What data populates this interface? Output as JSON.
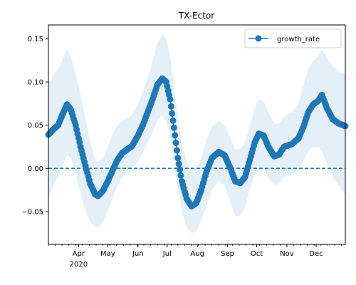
{
  "chart_data": {
    "type": "line",
    "title": "TX-Ector",
    "xlabel": "",
    "ylabel": "",
    "x_range": [
      "2020-03-01",
      "2020-12-31"
    ],
    "ylim": [
      -0.088,
      0.166
    ],
    "yticks": [
      -0.05,
      0.0,
      0.05,
      0.1,
      0.15
    ],
    "ytick_labels": [
      "−0.05",
      "0.00",
      "0.05",
      "0.10",
      "0.15"
    ],
    "xticks": [
      {
        "date": "2020-04-01",
        "label": "Apr",
        "sublabel": "2020"
      },
      {
        "date": "2020-05-01",
        "label": "May",
        "sublabel": ""
      },
      {
        "date": "2020-06-01",
        "label": "Jun",
        "sublabel": ""
      },
      {
        "date": "2020-07-01",
        "label": "Jul",
        "sublabel": ""
      },
      {
        "date": "2020-08-01",
        "label": "Aug",
        "sublabel": ""
      },
      {
        "date": "2020-09-01",
        "label": "Sep",
        "sublabel": ""
      },
      {
        "date": "2020-10-01",
        "label": "Oct",
        "sublabel": ""
      },
      {
        "date": "2020-11-01",
        "label": "Nov",
        "sublabel": ""
      },
      {
        "date": "2020-12-01",
        "label": "Dec",
        "sublabel": ""
      }
    ],
    "reference_line": {
      "y": 0,
      "style": "dashed"
    },
    "legend": {
      "placement": "top-right",
      "entries": [
        "growth_rate"
      ]
    },
    "grid": false,
    "colors": {
      "line": "#1f77b4",
      "band": "#dce9f5",
      "ref": "#1f77b4"
    },
    "series": [
      {
        "name": "growth_rate",
        "points": [
          {
            "x": "2020-03-01",
            "y": 0.039,
            "lo": -0.035,
            "hi": 0.097
          },
          {
            "x": "2020-03-06",
            "y": 0.045,
            "lo": -0.02,
            "hi": 0.108
          },
          {
            "x": "2020-03-11",
            "y": 0.05,
            "lo": -0.01,
            "hi": 0.115
          },
          {
            "x": "2020-03-15",
            "y": 0.061,
            "lo": 0.0,
            "hi": 0.125
          },
          {
            "x": "2020-03-20",
            "y": 0.074,
            "lo": 0.015,
            "hi": 0.138
          },
          {
            "x": "2020-03-24",
            "y": 0.068,
            "lo": 0.012,
            "hi": 0.13
          },
          {
            "x": "2020-03-29",
            "y": 0.05,
            "lo": -0.005,
            "hi": 0.11
          },
          {
            "x": "2020-04-03",
            "y": 0.025,
            "lo": -0.03,
            "hi": 0.085
          },
          {
            "x": "2020-04-08",
            "y": 0.003,
            "lo": -0.05,
            "hi": 0.058
          },
          {
            "x": "2020-04-13",
            "y": -0.018,
            "lo": -0.062,
            "hi": 0.03
          },
          {
            "x": "2020-04-18",
            "y": -0.03,
            "lo": -0.068,
            "hi": 0.01
          },
          {
            "x": "2020-04-21",
            "y": -0.032,
            "lo": -0.068,
            "hi": 0.008
          },
          {
            "x": "2020-04-26",
            "y": -0.026,
            "lo": -0.062,
            "hi": 0.012
          },
          {
            "x": "2020-05-01",
            "y": -0.015,
            "lo": -0.05,
            "hi": 0.025
          },
          {
            "x": "2020-05-06",
            "y": -0.002,
            "lo": -0.035,
            "hi": 0.04
          },
          {
            "x": "2020-05-11",
            "y": 0.01,
            "lo": -0.02,
            "hi": 0.05
          },
          {
            "x": "2020-05-16",
            "y": 0.018,
            "lo": -0.01,
            "hi": 0.055
          },
          {
            "x": "2020-05-21",
            "y": 0.022,
            "lo": -0.005,
            "hi": 0.058
          },
          {
            "x": "2020-05-26",
            "y": 0.026,
            "lo": 0.0,
            "hi": 0.062
          },
          {
            "x": "2020-06-01",
            "y": 0.038,
            "lo": 0.008,
            "hi": 0.075
          },
          {
            "x": "2020-06-06",
            "y": 0.05,
            "lo": 0.018,
            "hi": 0.088
          },
          {
            "x": "2020-06-11",
            "y": 0.065,
            "lo": 0.03,
            "hi": 0.105
          },
          {
            "x": "2020-06-16",
            "y": 0.08,
            "lo": 0.042,
            "hi": 0.125
          },
          {
            "x": "2020-06-21",
            "y": 0.097,
            "lo": 0.055,
            "hi": 0.145
          },
          {
            "x": "2020-06-26",
            "y": 0.104,
            "lo": 0.062,
            "hi": 0.155
          },
          {
            "x": "2020-06-30",
            "y": 0.1,
            "lo": 0.055,
            "hi": 0.15
          },
          {
            "x": "2020-07-04",
            "y": 0.08,
            "lo": 0.035,
            "hi": 0.13
          },
          {
            "x": "2020-07-08",
            "y": 0.047,
            "lo": 0.005,
            "hi": 0.095
          },
          {
            "x": "2020-07-12",
            "y": 0.012,
            "lo": -0.025,
            "hi": 0.06
          },
          {
            "x": "2020-07-16",
            "y": -0.015,
            "lo": -0.05,
            "hi": 0.03
          },
          {
            "x": "2020-07-21",
            "y": -0.035,
            "lo": -0.068,
            "hi": 0.008
          },
          {
            "x": "2020-07-26",
            "y": -0.044,
            "lo": -0.075,
            "hi": -0.005
          },
          {
            "x": "2020-07-31",
            "y": -0.04,
            "lo": -0.073,
            "hi": 0.0
          },
          {
            "x": "2020-08-05",
            "y": -0.025,
            "lo": -0.06,
            "hi": 0.012
          },
          {
            "x": "2020-08-10",
            "y": -0.005,
            "lo": -0.045,
            "hi": 0.032
          },
          {
            "x": "2020-08-16",
            "y": 0.012,
            "lo": -0.025,
            "hi": 0.048
          },
          {
            "x": "2020-08-23",
            "y": 0.019,
            "lo": -0.015,
            "hi": 0.055
          },
          {
            "x": "2020-08-29",
            "y": 0.015,
            "lo": -0.02,
            "hi": 0.05
          },
          {
            "x": "2020-09-04",
            "y": 0.0,
            "lo": -0.04,
            "hi": 0.035
          },
          {
            "x": "2020-09-09",
            "y": -0.015,
            "lo": -0.055,
            "hi": 0.022
          },
          {
            "x": "2020-09-14",
            "y": -0.017,
            "lo": -0.055,
            "hi": 0.022
          },
          {
            "x": "2020-09-19",
            "y": -0.01,
            "lo": -0.045,
            "hi": 0.03
          },
          {
            "x": "2020-09-24",
            "y": 0.01,
            "lo": -0.025,
            "hi": 0.05
          },
          {
            "x": "2020-09-29",
            "y": 0.03,
            "lo": -0.008,
            "hi": 0.07
          },
          {
            "x": "2020-10-03",
            "y": 0.04,
            "lo": 0.0,
            "hi": 0.08
          },
          {
            "x": "2020-10-08",
            "y": 0.038,
            "lo": 0.0,
            "hi": 0.078
          },
          {
            "x": "2020-10-13",
            "y": 0.025,
            "lo": -0.012,
            "hi": 0.065
          },
          {
            "x": "2020-10-19",
            "y": 0.014,
            "lo": -0.02,
            "hi": 0.052
          },
          {
            "x": "2020-10-24",
            "y": 0.016,
            "lo": -0.018,
            "hi": 0.052
          },
          {
            "x": "2020-10-29",
            "y": 0.025,
            "lo": -0.01,
            "hi": 0.06
          },
          {
            "x": "2020-11-06",
            "y": 0.028,
            "lo": -0.008,
            "hi": 0.065
          },
          {
            "x": "2020-11-13",
            "y": 0.035,
            "lo": 0.0,
            "hi": 0.075
          },
          {
            "x": "2020-11-18",
            "y": 0.048,
            "lo": 0.008,
            "hi": 0.095
          },
          {
            "x": "2020-11-23",
            "y": 0.065,
            "lo": 0.02,
            "hi": 0.115
          },
          {
            "x": "2020-11-28",
            "y": 0.074,
            "lo": 0.025,
            "hi": 0.125
          },
          {
            "x": "2020-12-03",
            "y": 0.078,
            "lo": 0.025,
            "hi": 0.13
          },
          {
            "x": "2020-12-07",
            "y": 0.085,
            "lo": 0.02,
            "hi": 0.138
          },
          {
            "x": "2020-12-12",
            "y": 0.07,
            "lo": 0.005,
            "hi": 0.128
          },
          {
            "x": "2020-12-18",
            "y": 0.057,
            "lo": -0.01,
            "hi": 0.118
          },
          {
            "x": "2020-12-24",
            "y": 0.052,
            "lo": -0.02,
            "hi": 0.112
          },
          {
            "x": "2020-12-31",
            "y": 0.049,
            "lo": -0.03,
            "hi": 0.108
          }
        ]
      }
    ]
  }
}
